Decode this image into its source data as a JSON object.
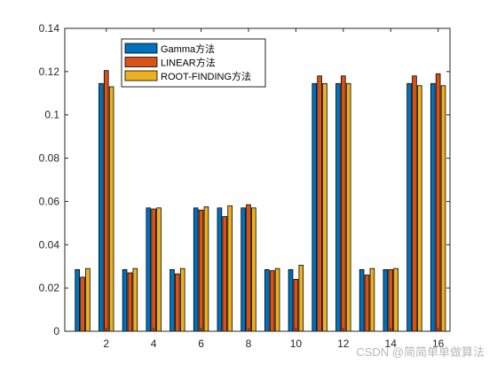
{
  "chart_data": {
    "type": "bar",
    "categories": [
      "1",
      "2",
      "3",
      "4",
      "5",
      "6",
      "7",
      "8",
      "9",
      "10",
      "11",
      "12",
      "13",
      "14",
      "15",
      "16"
    ],
    "x_tick_labels": [
      "2",
      "4",
      "6",
      "8",
      "10",
      "12",
      "14",
      "16"
    ],
    "y_tick_labels": [
      "0",
      "0.02",
      "0.04",
      "0.06",
      "0.08",
      "0.1",
      "0.12",
      "0.14"
    ],
    "ylim": [
      0,
      0.14
    ],
    "legend_position": "top-left",
    "grid": false,
    "series": [
      {
        "name": "Gamma方法",
        "color": "#0072BD",
        "values": [
          0.0285,
          0.1145,
          0.0285,
          0.057,
          0.0285,
          0.057,
          0.057,
          0.057,
          0.0285,
          0.0285,
          0.1145,
          0.1145,
          0.0285,
          0.0285,
          0.1145,
          0.1145
        ]
      },
      {
        "name": "LINEAR方法",
        "color": "#D95319",
        "values": [
          0.025,
          0.1205,
          0.027,
          0.0565,
          0.0265,
          0.056,
          0.053,
          0.0585,
          0.028,
          0.024,
          0.118,
          0.118,
          0.026,
          0.0285,
          0.118,
          0.119
        ]
      },
      {
        "name": "ROOT-FINDING方法",
        "color": "#EDB120",
        "values": [
          0.029,
          0.113,
          0.029,
          0.057,
          0.029,
          0.0575,
          0.058,
          0.057,
          0.029,
          0.0305,
          0.1145,
          0.1145,
          0.029,
          0.029,
          0.1135,
          0.1135
        ]
      }
    ]
  },
  "watermark": {
    "text": "CSDN @简简单单做算法"
  }
}
